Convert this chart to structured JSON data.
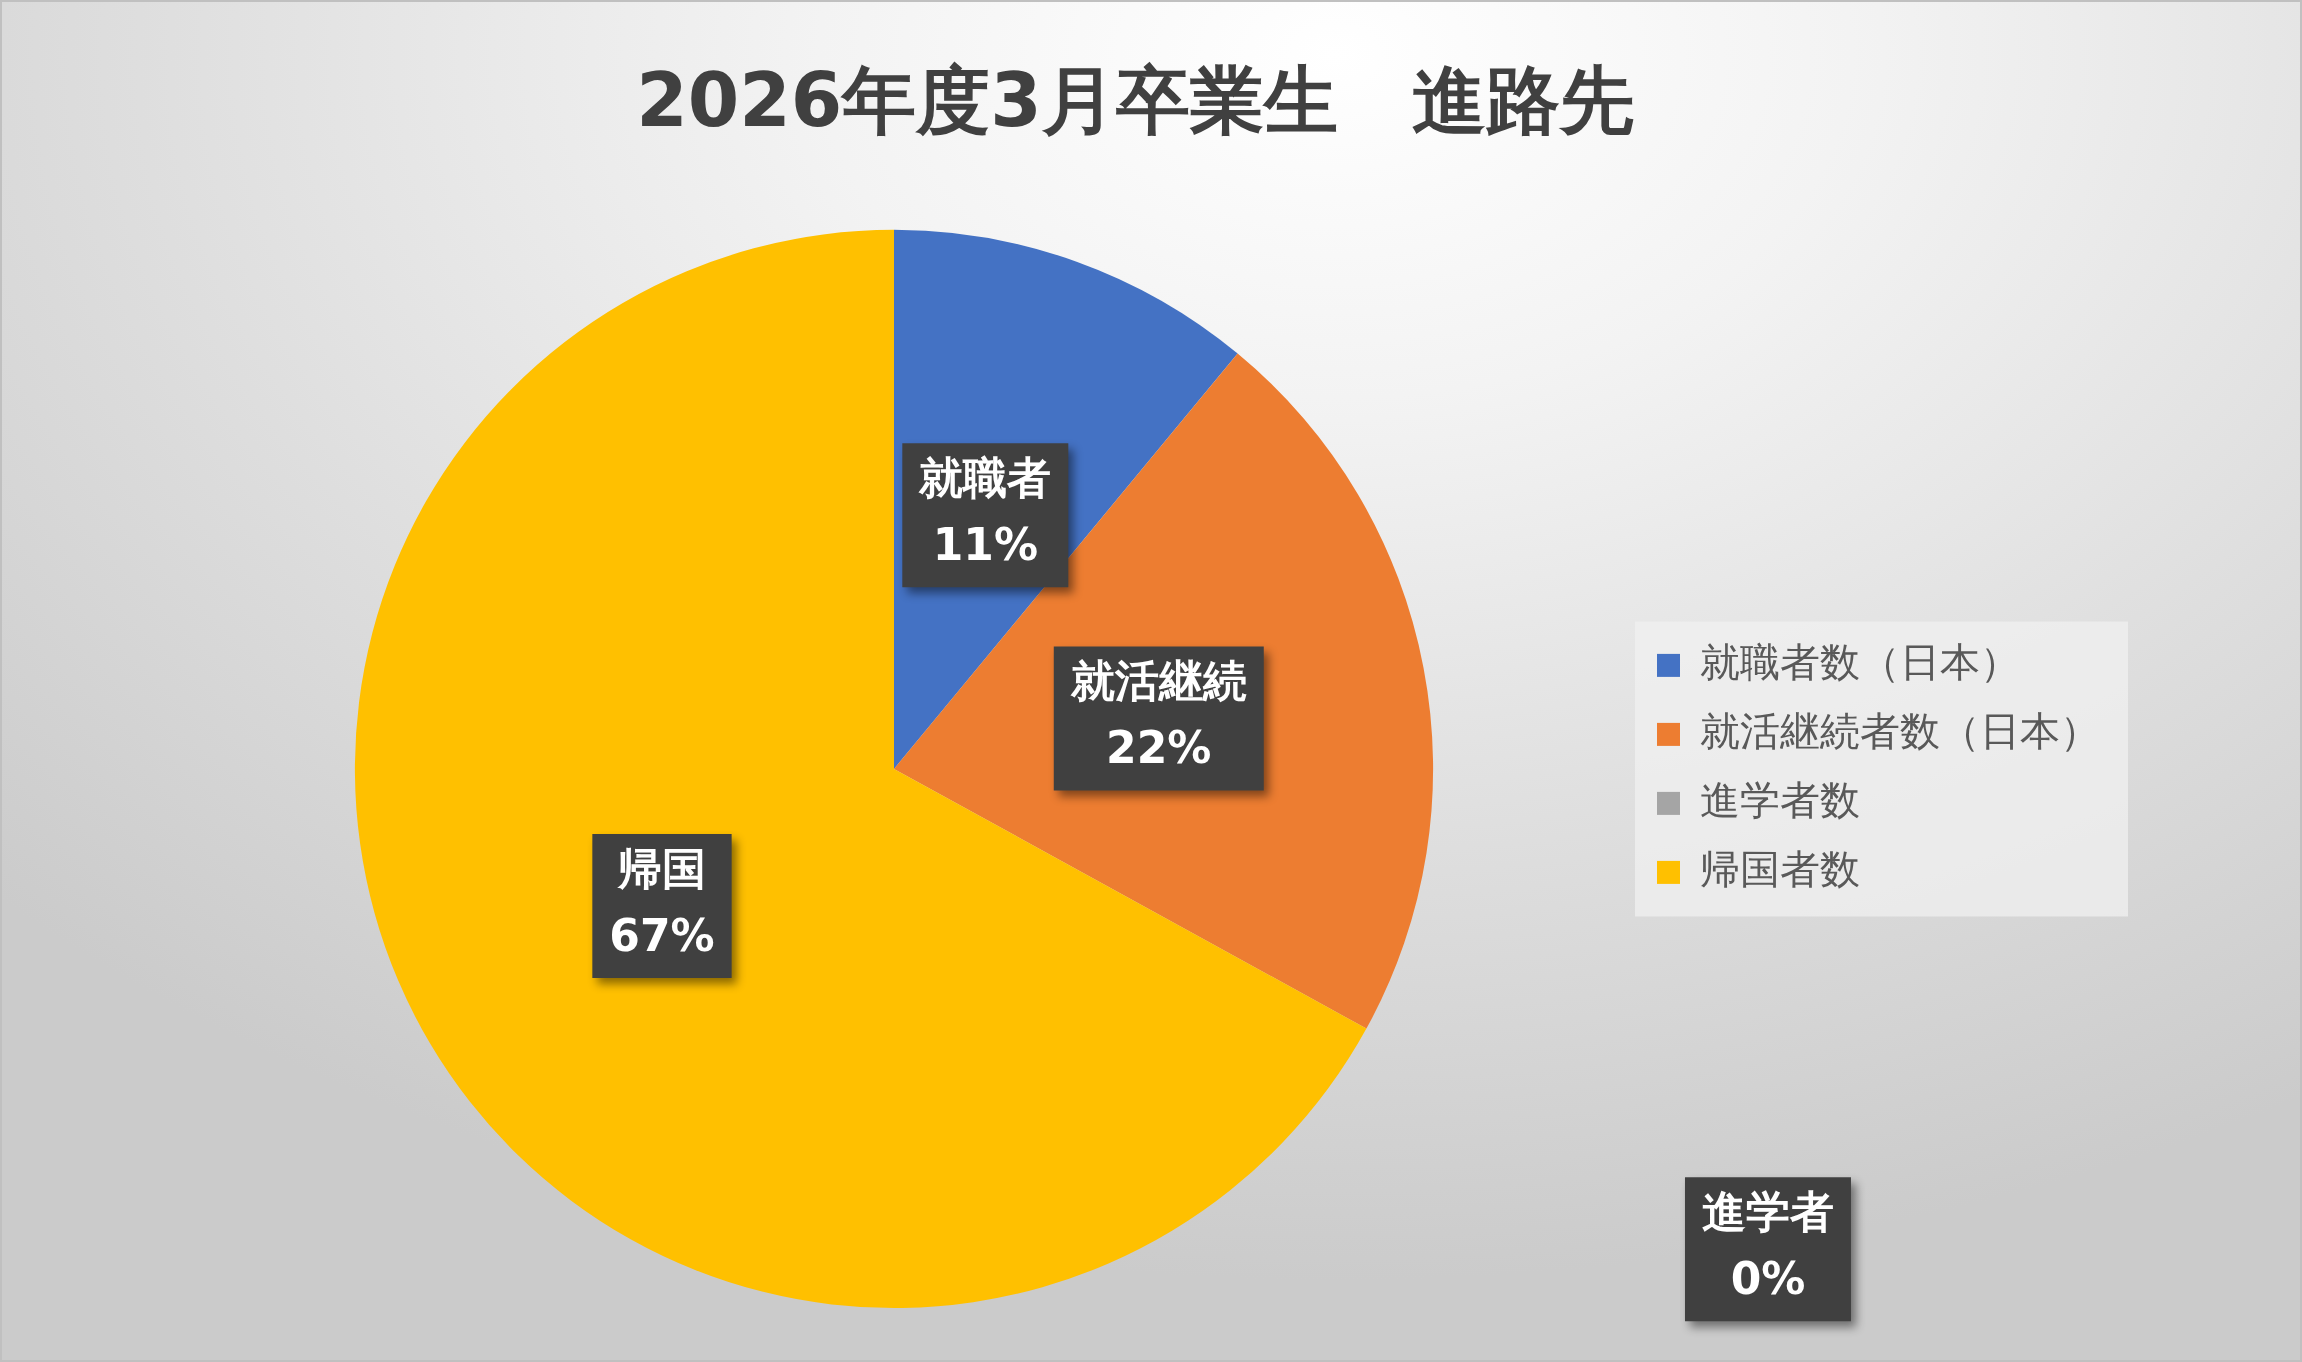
{
  "chart_data": {
    "type": "pie",
    "title": "2026年度3月卒業生　進路先",
    "categories": [
      "就職者数（日本）",
      "就活継続者数（日本）",
      "進学者数",
      "帰国者数"
    ],
    "values": [
      11,
      22,
      0,
      67
    ],
    "colors": [
      "#4472c4",
      "#ed7d31",
      "#a5a5a5",
      "#ffc000"
    ],
    "value_labels": [
      "就職者\n11%",
      "就活継続\n22%",
      "進学者\n0%",
      "帰国\n67%"
    ],
    "legend": "right"
  }
}
